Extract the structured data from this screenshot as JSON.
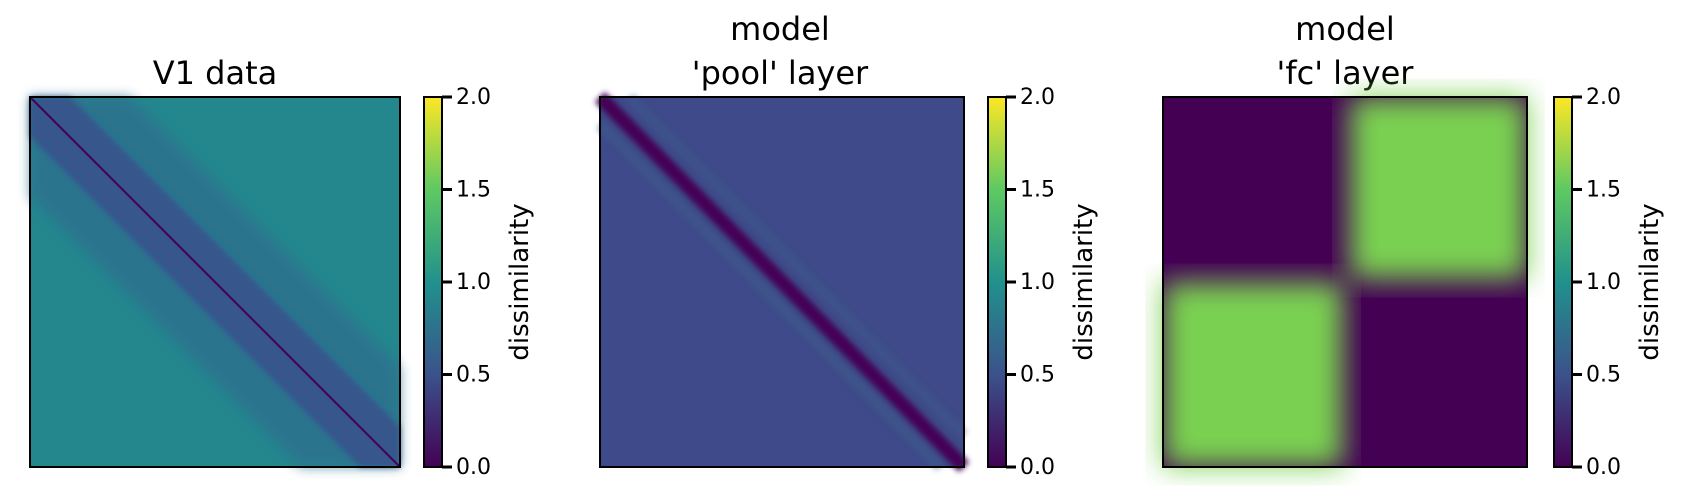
{
  "chart_data": [
    {
      "type": "heatmap",
      "title_lines": [
        "V1 data"
      ],
      "pattern": "diagonal-band",
      "diagonal_value": 0.05,
      "band_value": 0.75,
      "off_diagonal_value": 1.25,
      "colorbar": {
        "label": "dissimilarity",
        "ticks": [
          "0.0",
          "0.5",
          "1.0",
          "1.5",
          "2.0"
        ],
        "range": [
          0.0,
          2.0
        ],
        "colormap": "viridis"
      }
    },
    {
      "type": "heatmap",
      "title_lines": [
        "model",
        "'pool' layer"
      ],
      "pattern": "diagonal-line",
      "diagonal_value": 0.0,
      "off_diagonal_value": 0.42,
      "colorbar": {
        "label": "dissimilarity",
        "ticks": [
          "0.0",
          "0.5",
          "1.0",
          "1.5",
          "2.0"
        ],
        "range": [
          0.0,
          2.0
        ],
        "colormap": "viridis"
      }
    },
    {
      "type": "heatmap",
      "title_lines": [
        "model",
        "'fc' layer"
      ],
      "pattern": "block-2x2",
      "block_split_fraction": 0.5,
      "same_block_value": 0.0,
      "cross_block_value": 1.55,
      "colorbar": {
        "label": "dissimilarity",
        "ticks": [
          "0.0",
          "0.5",
          "1.0",
          "1.5",
          "2.0"
        ],
        "range": [
          0.0,
          2.0
        ],
        "colormap": "viridis"
      }
    }
  ]
}
